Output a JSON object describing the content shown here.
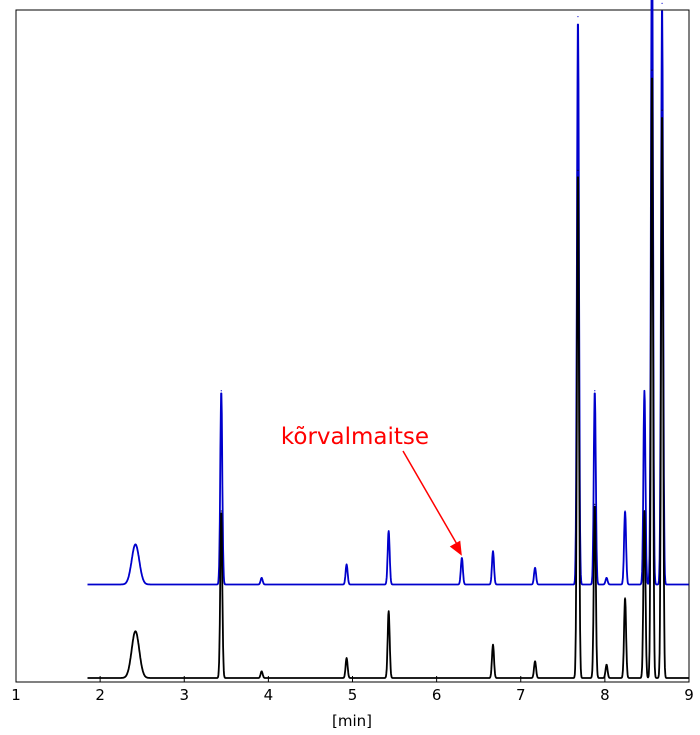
{
  "chart_data": {
    "type": "line",
    "xlabel": "[min]",
    "xlim": [
      1,
      9
    ],
    "x_ticks": [
      "1",
      "2",
      "3",
      "4",
      "5",
      "6",
      "7",
      "8",
      "9"
    ],
    "y_ticks": [],
    "grid": false,
    "legend": "none",
    "series": [
      {
        "color": "#0000cc",
        "baseline": 0.14,
        "x_start": 1.85,
        "peaks": [
          {
            "x": 2.42,
            "y": 0.06
          },
          {
            "x": 3.44,
            "y": 0.29
          },
          {
            "x": 3.92,
            "y": 0.01
          },
          {
            "x": 4.93,
            "y": 0.03
          },
          {
            "x": 5.43,
            "y": 0.08
          },
          {
            "x": 6.3,
            "y": 0.04
          },
          {
            "x": 6.67,
            "y": 0.05
          },
          {
            "x": 7.17,
            "y": 0.025
          },
          {
            "x": 7.68,
            "y": 0.85
          },
          {
            "x": 7.88,
            "y": 0.29
          },
          {
            "x": 8.02,
            "y": 0.01
          },
          {
            "x": 8.24,
            "y": 0.11
          },
          {
            "x": 8.47,
            "y": 0.29
          },
          {
            "x": 8.56,
            "y": 1.0
          },
          {
            "x": 8.68,
            "y": 0.87
          }
        ]
      },
      {
        "color": "#000000",
        "baseline": 0.0,
        "x_start": 1.85,
        "peaks": [
          {
            "x": 2.42,
            "y": 0.07
          },
          {
            "x": 3.44,
            "y": 0.25
          },
          {
            "x": 3.92,
            "y": 0.01
          },
          {
            "x": 4.93,
            "y": 0.03
          },
          {
            "x": 5.43,
            "y": 0.1
          },
          {
            "x": 6.67,
            "y": 0.05
          },
          {
            "x": 7.17,
            "y": 0.025
          },
          {
            "x": 7.68,
            "y": 0.76
          },
          {
            "x": 7.88,
            "y": 0.26
          },
          {
            "x": 8.02,
            "y": 0.02
          },
          {
            "x": 8.24,
            "y": 0.12
          },
          {
            "x": 8.47,
            "y": 0.25
          },
          {
            "x": 8.56,
            "y": 0.91
          },
          {
            "x": 8.68,
            "y": 0.85
          }
        ]
      }
    ],
    "annotations": [
      {
        "text": "kõrvalmaitse",
        "color": "#ff0000",
        "target_x": 6.3
      }
    ]
  }
}
